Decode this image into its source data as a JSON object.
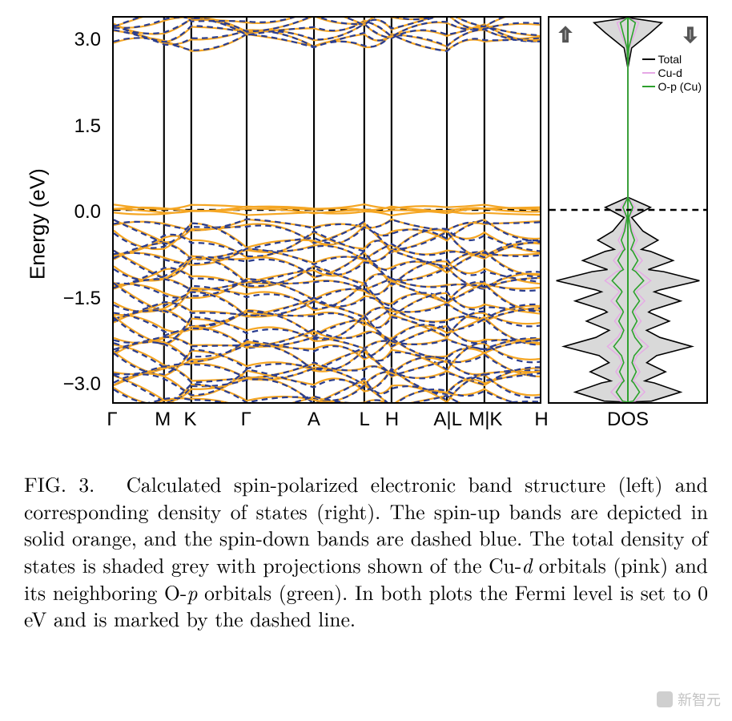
{
  "figure": {
    "ylabel": "Energy (eV)",
    "ylim": [
      -3.8,
      3.8
    ],
    "yticks": [
      3.0,
      1.5,
      0.0,
      -1.5,
      -3.0
    ],
    "ytick_labels": [
      "3.0",
      "1.5",
      "0.0",
      "−1.5",
      "−3.0"
    ],
    "fermi_level": 0.0,
    "colors": {
      "spin_up": "#f5a623",
      "spin_down": "#2a3d8f",
      "total_fill": "#d9d9d9",
      "total_stroke": "#000000",
      "cu_d": "#e6a8e6",
      "o_p": "#2ca02c",
      "axis": "#000000",
      "fermi_dash": "#000000",
      "arrow": "#777777"
    },
    "band": {
      "type": "band-structure",
      "kpath_labels": [
        "Γ",
        "M",
        "K",
        "Γ",
        "A",
        "L",
        "H",
        "A|L",
        "M|K",
        "H"
      ],
      "kpath_fractions": [
        0.0,
        0.118,
        0.182,
        0.312,
        0.47,
        0.588,
        0.652,
        0.782,
        0.87,
        1.0
      ],
      "spin_up_style": "solid",
      "spin_down_style": "dashed",
      "line_width": 2.2,
      "flat_bands_near_EF": [
        0.02,
        -0.02,
        0.06,
        -0.06
      ],
      "upper_group_range": [
        3.3,
        3.8
      ],
      "lower_group_range": [
        -3.8,
        -0.3
      ],
      "n_upper_curves": 6,
      "n_lower_curves": 28
    },
    "dos": {
      "type": "density-of-states",
      "xlabel": "DOS",
      "xlim": [
        -1,
        1
      ],
      "spin_arrows": [
        "up",
        "down"
      ],
      "legend": [
        {
          "label": "Total",
          "color": "#000000"
        },
        {
          "label": "Cu-d",
          "color": "#e6a8e6"
        },
        {
          "label": "O-p (Cu)",
          "color": "#2ca02c"
        }
      ],
      "peak_energies": [
        3.6,
        0.0,
        -0.6,
        -1.0,
        -1.4,
        -1.8,
        -2.2,
        -2.7,
        -3.2,
        -3.6
      ],
      "peak_values": [
        0.45,
        0.3,
        0.4,
        0.6,
        0.95,
        0.7,
        0.55,
        0.85,
        0.5,
        0.7
      ]
    }
  },
  "caption": {
    "label": "FIG. 3.",
    "text_parts": [
      "Calculated spin-polarized electronic band structure (left) and corresponding density of states (right). The spin-up bands are depicted in solid orange, and the spin-down bands are dashed blue. The total density of states is shaded grey with projections shown of the Cu-",
      "d",
      " orbitals (pink) and its neighboring O-",
      "p",
      " orbitals (green). In both plots the Fermi level is set to 0 eV and is marked by the dashed line."
    ]
  },
  "watermark": "新智元"
}
